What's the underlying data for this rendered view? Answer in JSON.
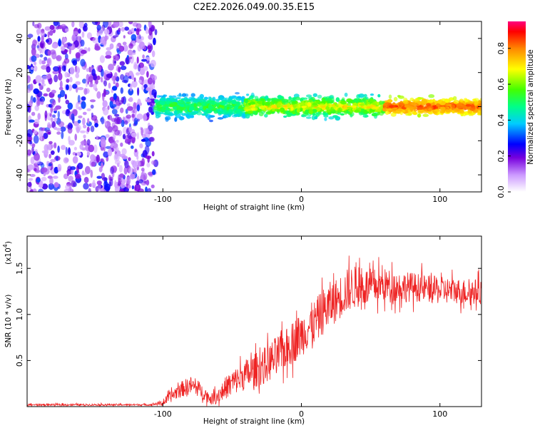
{
  "title": "C2E2.2026.049.00.35.E15",
  "colors": {
    "snr_line": "#ee2222",
    "axis": "#000000"
  },
  "chart_data": [
    {
      "type": "heatmap",
      "title": "C2E2.2026.049.00.35.E15",
      "xlabel": "Height of straight line (km)",
      "ylabel": "Frequency (Hz)",
      "xlim": [
        -198,
        130
      ],
      "ylim": [
        -50,
        50
      ],
      "xticks": [
        {
          "v": -100,
          "label": "-100"
        },
        {
          "v": 0,
          "label": "0"
        },
        {
          "v": 100,
          "label": "100"
        }
      ],
      "yticks": [
        {
          "v": -40,
          "label": "-40"
        },
        {
          "v": -20,
          "label": "-20"
        },
        {
          "v": 0,
          "label": "0"
        },
        {
          "v": 20,
          "label": "20"
        },
        {
          "v": 40,
          "label": "40"
        }
      ],
      "description": "Noise-dominated region for heights below about -105 km; a narrow band of high amplitude near 0 Hz from about -105 km to 130 km, strongest (amplitude up to ~0.95) between 60 and 130 km.",
      "regions": [
        {
          "x": [
            -198,
            -105
          ],
          "freq_range": [
            -50,
            50
          ],
          "amplitude": [
            0.0,
            0.3
          ]
        },
        {
          "x": [
            -105,
            -40
          ],
          "freq_center": 0,
          "freq_halfwidth": 6,
          "amplitude": [
            0.2,
            0.6
          ]
        },
        {
          "x": [
            -40,
            60
          ],
          "freq_center": 0,
          "freq_halfwidth": 5,
          "amplitude": [
            0.3,
            0.8
          ]
        },
        {
          "x": [
            60,
            130
          ],
          "freq_center": 0,
          "freq_halfwidth": 4,
          "amplitude": [
            0.6,
            0.95
          ]
        }
      ],
      "colorbar": {
        "label": "Normalized spectral amplitude",
        "range": [
          0.0,
          0.95
        ],
        "ticks": [
          {
            "v": 0.0,
            "label": "0.0"
          },
          {
            "v": 0.2,
            "label": "0.2"
          },
          {
            "v": 0.4,
            "label": "0.4"
          },
          {
            "v": 0.6,
            "label": "0.6"
          },
          {
            "v": 0.8,
            "label": "0.8"
          }
        ]
      }
    },
    {
      "type": "line",
      "xlabel": "Height of straight line (km)",
      "ylabel": "SNR (10 * v/v)",
      "multiplier": "(x10",
      "multiplier_exp": "4",
      "multiplier_close": ")",
      "xlim": [
        -198,
        130
      ],
      "ylim": [
        0,
        1.85
      ],
      "xticks": [
        {
          "v": -100,
          "label": "-100"
        },
        {
          "v": 0,
          "label": "0"
        },
        {
          "v": 100,
          "label": "100"
        }
      ],
      "yticks": [
        {
          "v": 0.5,
          "label": "0.5"
        },
        {
          "v": 1.0,
          "label": "1.0"
        },
        {
          "v": 1.5,
          "label": "1.5"
        }
      ],
      "series": [
        {
          "name": "SNR",
          "x": [
            -198,
            -150,
            -110,
            -100,
            -95,
            -90,
            -85,
            -80,
            -75,
            -70,
            -65,
            -60,
            -55,
            -50,
            -45,
            -40,
            -35,
            -30,
            -25,
            -20,
            -15,
            -10,
            -5,
            0,
            5,
            10,
            15,
            20,
            25,
            30,
            35,
            40,
            50,
            60,
            70,
            80,
            90,
            100,
            110,
            120,
            130
          ],
          "y": [
            0.02,
            0.02,
            0.02,
            0.04,
            0.1,
            0.16,
            0.2,
            0.23,
            0.2,
            0.14,
            0.08,
            0.12,
            0.2,
            0.26,
            0.3,
            0.35,
            0.38,
            0.42,
            0.46,
            0.52,
            0.58,
            0.64,
            0.72,
            0.78,
            0.86,
            0.92,
            1.02,
            1.1,
            1.15,
            1.22,
            1.28,
            1.3,
            1.3,
            1.32,
            1.3,
            1.3,
            1.28,
            1.26,
            1.26,
            1.24,
            1.25
          ],
          "noise": [
            0.01,
            0.01,
            0.01,
            0.03,
            0.06,
            0.08,
            0.09,
            0.1,
            0.09,
            0.07,
            0.06,
            0.09,
            0.12,
            0.14,
            0.15,
            0.17,
            0.18,
            0.2,
            0.2,
            0.22,
            0.22,
            0.22,
            0.24,
            0.24,
            0.24,
            0.24,
            0.25,
            0.25,
            0.24,
            0.24,
            0.24,
            0.23,
            0.2,
            0.18,
            0.17,
            0.16,
            0.15,
            0.15,
            0.14,
            0.14,
            0.14
          ]
        }
      ]
    }
  ]
}
